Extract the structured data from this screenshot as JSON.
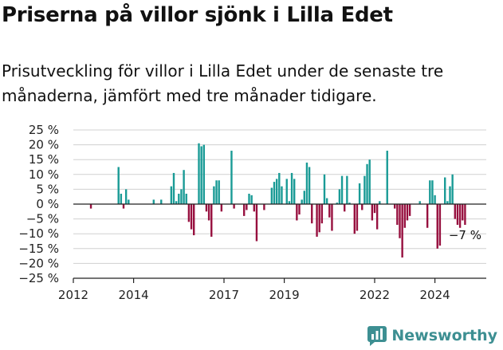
{
  "title": "Priserna på villor sjönk i Lilla Edet",
  "subtitle": "Prisutveckling för villor i Lilla Edet under de senaste tre månaderna, jämfört med tre månader tidigare.",
  "brand": "Newsworthy",
  "colors": {
    "positive": "#1a9b96",
    "negative": "#97103f",
    "axis": "#222222",
    "grid": "#d0d0d0",
    "brand": "#3d8f92"
  },
  "chart_data": {
    "type": "bar",
    "unit": "%",
    "ylim": [
      -25,
      25
    ],
    "yticks": [
      25,
      20,
      15,
      10,
      5,
      0,
      -5,
      -10,
      -15,
      -20,
      -25
    ],
    "ytick_labels": [
      "25 %",
      "20 %",
      "15 %",
      "10 %",
      "5 %",
      "0 %",
      "−5 %",
      "−10 %",
      "−15 %",
      "−20 %",
      "−25 %"
    ],
    "xticks": [
      {
        "date": "2012-01",
        "label": "2012"
      },
      {
        "date": "2014-01",
        "label": "2014"
      },
      {
        "date": "2017-01",
        "label": "2017"
      },
      {
        "date": "2019-01",
        "label": "2019"
      },
      {
        "date": "2022-01",
        "label": "2022"
      },
      {
        "date": "2024-01",
        "label": "2024"
      }
    ],
    "grid": true,
    "last_value_label": "−7 %",
    "series": [
      {
        "values": [
          [
            "2012-08",
            -1.5
          ],
          [
            "2013-07",
            12.5
          ],
          [
            "2013-08",
            3.5
          ],
          [
            "2013-09",
            -1.5
          ],
          [
            "2013-10",
            5
          ],
          [
            "2013-11",
            1.5
          ],
          [
            "2014-09",
            1.5
          ],
          [
            "2014-12",
            1.5
          ],
          [
            "2015-04",
            6
          ],
          [
            "2015-05",
            10.5
          ],
          [
            "2015-06",
            1
          ],
          [
            "2015-07",
            3.5
          ],
          [
            "2015-08",
            5
          ],
          [
            "2015-09",
            11.5
          ],
          [
            "2015-10",
            3.5
          ],
          [
            "2015-11",
            -6
          ],
          [
            "2015-12",
            -8.5
          ],
          [
            "2016-01",
            -10.5
          ],
          [
            "2016-03",
            20.5
          ],
          [
            "2016-04",
            19.5
          ],
          [
            "2016-05",
            20
          ],
          [
            "2016-06",
            -2.5
          ],
          [
            "2016-07",
            -5.5
          ],
          [
            "2016-08",
            -11
          ],
          [
            "2016-09",
            6
          ],
          [
            "2016-10",
            8
          ],
          [
            "2016-11",
            8
          ],
          [
            "2016-12",
            -2.5
          ],
          [
            "2017-04",
            18
          ],
          [
            "2017-05",
            -1.5
          ],
          [
            "2017-09",
            -4
          ],
          [
            "2017-10",
            -2
          ],
          [
            "2017-11",
            3.5
          ],
          [
            "2017-12",
            3
          ],
          [
            "2018-01",
            -2.5
          ],
          [
            "2018-02",
            -12.5
          ],
          [
            "2018-05",
            -2
          ],
          [
            "2018-08",
            5.5
          ],
          [
            "2018-09",
            7.5
          ],
          [
            "2018-10",
            8.5
          ],
          [
            "2018-11",
            10.5
          ],
          [
            "2018-12",
            6
          ],
          [
            "2019-02",
            8.5
          ],
          [
            "2019-03",
            1
          ],
          [
            "2019-04",
            10.5
          ],
          [
            "2019-05",
            8.5
          ],
          [
            "2019-06",
            -5.5
          ],
          [
            "2019-07",
            -3.5
          ],
          [
            "2019-08",
            1.5
          ],
          [
            "2019-09",
            4.5
          ],
          [
            "2019-10",
            14
          ],
          [
            "2019-11",
            12.5
          ],
          [
            "2019-12",
            -6.5
          ],
          [
            "2020-02",
            -11
          ],
          [
            "2020-03",
            -9.5
          ],
          [
            "2020-04",
            -6.5
          ],
          [
            "2020-05",
            10
          ],
          [
            "2020-06",
            2
          ],
          [
            "2020-07",
            -4.5
          ],
          [
            "2020-08",
            -9
          ],
          [
            "2020-10",
            0.5
          ],
          [
            "2020-11",
            5
          ],
          [
            "2020-12",
            9.5
          ],
          [
            "2021-01",
            -2.5
          ],
          [
            "2021-02",
            9.5
          ],
          [
            "2021-03",
            0.5
          ],
          [
            "2021-05",
            -10
          ],
          [
            "2021-06",
            -9
          ],
          [
            "2021-07",
            7
          ],
          [
            "2021-08",
            -2
          ],
          [
            "2021-09",
            9.5
          ],
          [
            "2021-10",
            13.5
          ],
          [
            "2021-11",
            15
          ],
          [
            "2021-12",
            -5.5
          ],
          [
            "2022-01",
            -3
          ],
          [
            "2022-02",
            -8.5
          ],
          [
            "2022-03",
            1
          ],
          [
            "2022-06",
            18
          ],
          [
            "2022-09",
            -1.5
          ],
          [
            "2022-10",
            -7
          ],
          [
            "2022-11",
            -11.5
          ],
          [
            "2022-12",
            -18
          ],
          [
            "2023-01",
            -8
          ],
          [
            "2023-02",
            -5.5
          ],
          [
            "2023-03",
            -4
          ],
          [
            "2023-07",
            1
          ],
          [
            "2023-10",
            -8
          ],
          [
            "2023-11",
            8
          ],
          [
            "2023-12",
            8
          ],
          [
            "2024-01",
            3
          ],
          [
            "2024-02",
            -15
          ],
          [
            "2024-03",
            -14
          ],
          [
            "2024-05",
            9
          ],
          [
            "2024-06",
            1
          ],
          [
            "2024-07",
            6
          ],
          [
            "2024-08",
            10
          ],
          [
            "2024-09",
            -5
          ],
          [
            "2024-10",
            -7
          ],
          [
            "2024-11",
            -8
          ],
          [
            "2024-12",
            -5.5
          ],
          [
            "2025-01",
            -7
          ]
        ]
      }
    ]
  }
}
